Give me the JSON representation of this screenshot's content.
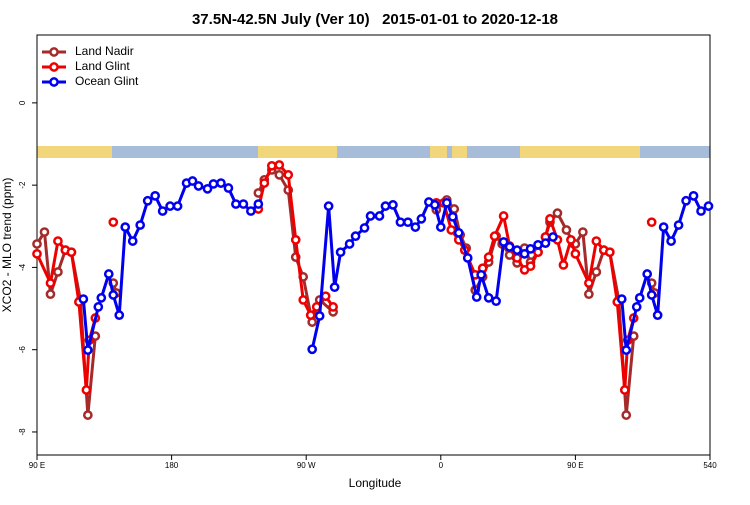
{
  "chart_data": {
    "type": "line",
    "title": "37.5N-42.5N July (Ver 10)   2015-01-01 to 2020-12-18",
    "x_label": "Longitude",
    "y_label": "XCO2 - MLO trend (ppm)",
    "xlim": [
      90,
      540
    ],
    "ylim": [
      -8.56,
      1.65
    ],
    "xticks": [
      {
        "value": 90,
        "label": "90 E"
      },
      180,
      {
        "value": 270,
        "label": "90 W"
      },
      {
        "value": 360,
        "label": "0"
      },
      {
        "value": 450,
        "label": "90 E"
      },
      540
    ],
    "yticks": [
      -8,
      -6,
      -4,
      -2,
      0
    ],
    "legend": "top-left",
    "series": [
      {
        "name": "Land Nadir",
        "color": "#a52a2a",
        "x": [
          90,
          95,
          99,
          104,
          109,
          113,
          119,
          124,
          129,
          null,
          141,
          143,
          null,
          238,
          242,
          247,
          252,
          258,
          263,
          268,
          274,
          279,
          288,
          null,
          357,
          364,
          369,
          373,
          377,
          383,
          388,
          392,
          397,
          401,
          406,
          411,
          416,
          420,
          425,
          430,
          433,
          438,
          444,
          449,
          450,
          455,
          459,
          464,
          469,
          473,
          479,
          484,
          489,
          null,
          501,
          503
        ],
        "values": [
          -3.43,
          -3.14,
          -4.65,
          -4.11,
          -3.58,
          -3.63,
          -4.79,
          -7.59,
          -5.67,
          null,
          -4.38,
          -4.62,
          null,
          -2.19,
          -1.87,
          -1.63,
          -1.75,
          -2.12,
          -3.75,
          -4.23,
          -5.33,
          -4.79,
          -5.08,
          null,
          -2.6,
          -2.36,
          -2.58,
          -3.21,
          -3.53,
          -4.55,
          -4.23,
          -3.87,
          -3.24,
          -3.43,
          -3.7,
          -3.89,
          -3.53,
          -3.87,
          -3.63,
          -3.26,
          -2.9,
          -2.68,
          -3.09,
          -3.43,
          -3.43,
          -3.14,
          -4.65,
          -4.11,
          -3.58,
          -3.63,
          -4.79,
          -7.59,
          -5.67,
          null,
          -4.38,
          -4.62
        ]
      },
      {
        "name": "Land Glint",
        "color": "#ee0000",
        "x": [
          90,
          99,
          104,
          109,
          113,
          118,
          123,
          125,
          129,
          null,
          141,
          null,
          238,
          242,
          247,
          252,
          258,
          263,
          268,
          273,
          277,
          283,
          288,
          null,
          357,
          362,
          367,
          372,
          376,
          383,
          388,
          392,
          396,
          402,
          406,
          411,
          416,
          420,
          425,
          430,
          433,
          438,
          442,
          447,
          450,
          459,
          464,
          469,
          473,
          478,
          483,
          485,
          489,
          null,
          501
        ],
        "values": [
          -3.67,
          -4.38,
          -3.36,
          -3.58,
          -3.63,
          -4.84,
          -6.98,
          -5.77,
          -5.23,
          null,
          -2.9,
          null,
          -2.58,
          -1.95,
          -1.53,
          -1.51,
          -1.75,
          -3.33,
          -4.79,
          -5.16,
          -4.96,
          -4.7,
          -4.96,
          null,
          -2.43,
          -2.43,
          -3.09,
          -3.33,
          -3.58,
          -4.18,
          -4.02,
          -3.75,
          -3.24,
          -2.75,
          -3.48,
          -3.77,
          -4.06,
          -3.97,
          -3.63,
          -3.26,
          -2.82,
          -3.33,
          -3.94,
          -3.33,
          -3.67,
          -4.38,
          -3.36,
          -3.58,
          -3.63,
          -4.84,
          -6.98,
          -5.77,
          -5.23,
          null,
          -2.9
        ]
      },
      {
        "name": "Ocean Glint",
        "color": "#0000ee",
        "x": [
          121,
          124,
          131,
          133,
          138,
          141,
          145,
          149,
          154,
          159,
          164,
          169,
          174,
          179,
          184,
          190,
          194,
          198,
          204,
          208,
          213,
          218,
          223,
          228,
          233,
          238,
          null,
          274,
          279,
          285,
          289,
          293,
          299,
          303,
          309,
          313,
          319,
          323,
          328,
          333,
          338,
          343,
          347,
          352,
          356,
          360,
          364,
          368,
          372,
          378,
          384,
          387,
          392,
          397,
          402,
          406,
          411,
          416,
          420,
          425,
          430,
          435,
          null,
          481,
          484,
          491,
          493,
          498,
          501,
          505,
          509,
          514,
          519,
          524,
          529,
          534,
          539
        ],
        "values": [
          -4.77,
          -6.01,
          -4.96,
          -4.74,
          -4.16,
          -4.67,
          -5.16,
          -3.02,
          -3.36,
          -2.97,
          -2.38,
          -2.26,
          -2.63,
          -2.51,
          -2.51,
          -1.95,
          -1.9,
          -2.02,
          -2.09,
          -1.97,
          -1.95,
          -2.07,
          -2.46,
          -2.46,
          -2.63,
          -2.46,
          null,
          -5.99,
          -5.18,
          -2.51,
          -4.48,
          -3.63,
          -3.43,
          -3.24,
          -3.04,
          -2.75,
          -2.75,
          -2.51,
          -2.48,
          -2.9,
          -2.9,
          -3.02,
          -2.82,
          -2.41,
          -2.48,
          -3.02,
          -2.43,
          -2.77,
          -3.16,
          -3.77,
          -4.72,
          -4.18,
          -4.74,
          -4.82,
          -3.38,
          -3.5,
          -3.58,
          -3.67,
          -3.55,
          -3.45,
          -3.41,
          -3.26,
          null,
          -4.77,
          -6.01,
          -4.96,
          -4.74,
          -4.16,
          -4.67,
          -5.16,
          -3.02,
          -3.36,
          -2.97,
          -2.38,
          -2.26,
          -2.63,
          -2.51
        ]
      }
    ]
  }
}
